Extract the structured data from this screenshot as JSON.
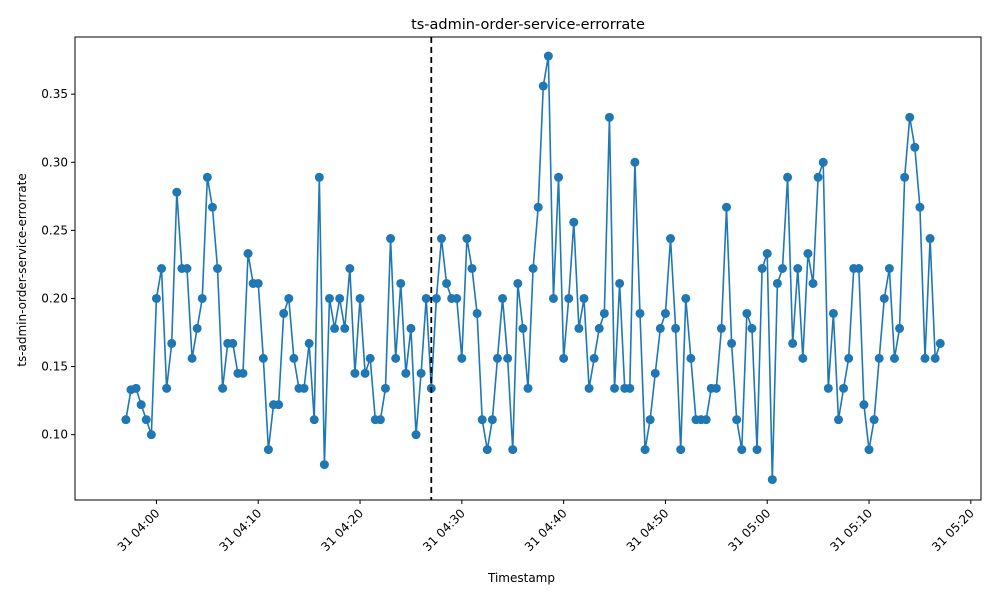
{
  "chart_data": {
    "type": "line",
    "title": "ts-admin-order-service-errorrate",
    "xlabel": "Timestamp",
    "ylabel": "ts-admin-order-service-errorrate",
    "x_range": [
      "03:52",
      "05:21"
    ],
    "ylim": [
      0.052,
      0.392
    ],
    "x_ticks": [
      "31 04:00",
      "31 04:10",
      "31 04:20",
      "31 04:30",
      "31 04:40",
      "31 04:50",
      "31 05:00",
      "31 05:10",
      "31 05:20"
    ],
    "y_ticks": [
      "0.10",
      "0.15",
      "0.20",
      "0.25",
      "0.30",
      "0.35"
    ],
    "grid": false,
    "legend": "none",
    "marker": "circle",
    "series_color": "#1f77b4",
    "threshold": {
      "x": "04:27",
      "style": "dashed",
      "color": "#000000"
    },
    "series": [
      {
        "x": [
          "03:57",
          "03:57:30",
          "03:58",
          "03:58:30",
          "03:59",
          "03:59:30",
          "04:00",
          "04:00:30",
          "04:01",
          "04:01:30",
          "04:02",
          "04:02:30",
          "04:03",
          "04:03:30",
          "04:04",
          "04:04:30",
          "04:05",
          "04:05:30",
          "04:06",
          "04:06:30",
          "04:07",
          "04:07:30",
          "04:08",
          "04:08:30",
          "04:09",
          "04:09:30",
          "04:10",
          "04:10:30",
          "04:11",
          "04:11:30",
          "04:12",
          "04:12:30",
          "04:13",
          "04:13:30",
          "04:14",
          "04:14:30",
          "04:15",
          "04:15:30",
          "04:16",
          "04:16:30",
          "04:17",
          "04:17:30",
          "04:18",
          "04:18:30",
          "04:19",
          "04:19:30",
          "04:20",
          "04:20:30",
          "04:21",
          "04:21:30",
          "04:22",
          "04:22:30",
          "04:23",
          "04:23:30",
          "04:24",
          "04:24:30",
          "04:25",
          "04:25:30",
          "04:26",
          "04:26:30",
          "04:27",
          "04:27:30",
          "04:28",
          "04:28:30",
          "04:29",
          "04:29:30",
          "04:30",
          "04:30:30",
          "04:31",
          "04:31:30",
          "04:32",
          "04:32:30",
          "04:33",
          "04:33:30",
          "04:34",
          "04:34:30",
          "04:35",
          "04:35:30",
          "04:36",
          "04:36:30",
          "04:37",
          "04:37:30",
          "04:38",
          "04:38:30",
          "04:39",
          "04:39:30",
          "04:40",
          "04:40:30",
          "04:41",
          "04:41:30",
          "04:42",
          "04:42:30",
          "04:43",
          "04:43:30",
          "04:44",
          "04:44:30",
          "04:45",
          "04:45:30",
          "04:46",
          "04:46:30",
          "04:47",
          "04:47:30",
          "04:48",
          "04:48:30",
          "04:49",
          "04:49:30",
          "04:50",
          "04:50:30",
          "04:51",
          "04:51:30",
          "04:52",
          "04:52:30",
          "04:53",
          "04:53:30",
          "04:54",
          "04:54:30",
          "04:55",
          "04:55:30",
          "04:56",
          "04:56:30",
          "04:57",
          "04:57:30",
          "04:58",
          "04:58:30",
          "04:59",
          "04:59:30",
          "05:00",
          "05:00:30",
          "05:01",
          "05:01:30",
          "05:02",
          "05:02:30",
          "05:03",
          "05:03:30",
          "05:04",
          "05:04:30",
          "05:05",
          "05:05:30",
          "05:06",
          "05:06:30",
          "05:07",
          "05:07:30",
          "05:08",
          "05:08:30",
          "05:09",
          "05:09:30",
          "05:10",
          "05:10:30",
          "05:11",
          "05:11:30",
          "05:12",
          "05:12:30",
          "05:13",
          "05:13:30",
          "05:14",
          "05:14:30",
          "05:15",
          "05:15:30",
          "05:16",
          "05:16:30",
          "05:17"
        ],
        "y": [
          0.111,
          0.133,
          0.134,
          0.122,
          0.111,
          0.1,
          0.2,
          0.222,
          0.134,
          0.167,
          0.278,
          0.222,
          0.222,
          0.156,
          0.178,
          0.2,
          0.289,
          0.267,
          0.222,
          0.134,
          0.167,
          0.167,
          0.145,
          0.145,
          0.233,
          0.211,
          0.211,
          0.156,
          0.089,
          0.122,
          0.122,
          0.189,
          0.2,
          0.156,
          0.134,
          0.134,
          0.167,
          0.111,
          0.289,
          0.078,
          0.2,
          0.178,
          0.2,
          0.178,
          0.222,
          0.145,
          0.2,
          0.145,
          0.156,
          0.111,
          0.111,
          0.134,
          0.244,
          0.156,
          0.211,
          0.145,
          0.178,
          0.1,
          0.145,
          0.2,
          0.134,
          0.2,
          0.244,
          0.211,
          0.2,
          0.2,
          0.156,
          0.244,
          0.222,
          0.189,
          0.111,
          0.089,
          0.111,
          0.156,
          0.2,
          0.156,
          0.089,
          0.211,
          0.178,
          0.134,
          0.222,
          0.267,
          0.356,
          0.378,
          0.2,
          0.289,
          0.156,
          0.2,
          0.256,
          0.178,
          0.2,
          0.134,
          0.156,
          0.178,
          0.189,
          0.333,
          0.134,
          0.211,
          0.134,
          0.134,
          0.3,
          0.189,
          0.089,
          0.111,
          0.145,
          0.178,
          0.189,
          0.244,
          0.178,
          0.089,
          0.2,
          0.156,
          0.111,
          0.111,
          0.111,
          0.134,
          0.134,
          0.178,
          0.267,
          0.167,
          0.111,
          0.089,
          0.189,
          0.178,
          0.089,
          0.222,
          0.233,
          0.067,
          0.211,
          0.222,
          0.289,
          0.167,
          0.222,
          0.156,
          0.233,
          0.211,
          0.289,
          0.3,
          0.134,
          0.189,
          0.111,
          0.134,
          0.156,
          0.222,
          0.222,
          0.122,
          0.089,
          0.111,
          0.156,
          0.2,
          0.222,
          0.156,
          0.178,
          0.289,
          0.333,
          0.311,
          0.267,
          0.156,
          0.244,
          0.156,
          0.167
        ]
      }
    ]
  }
}
